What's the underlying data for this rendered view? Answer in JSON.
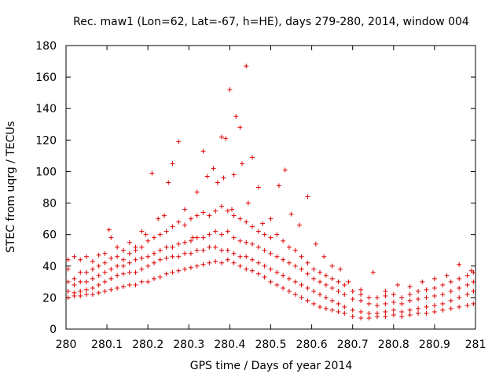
{
  "chart_data": {
    "type": "scatter",
    "title": "Rec. maw1 (Lon=62, Lat=-67, h=HE), days 279-280, 2014, window 004",
    "xlabel": "GPS time / Days of year 2014",
    "ylabel": "STEC from uqrg / TECUs",
    "xlim": [
      280,
      281
    ],
    "ylim": [
      0,
      180
    ],
    "xticks": [
      "280",
      "280.1",
      "280.2",
      "280.3",
      "280.4",
      "280.5",
      "280.6",
      "280.7",
      "280.8",
      "280.9",
      "281"
    ],
    "yticks": [
      "0",
      "20",
      "40",
      "60",
      "80",
      "100",
      "120",
      "140",
      "160",
      "180"
    ],
    "grid": false,
    "marker": "plus",
    "color": "#e00000",
    "series": [
      {
        "points": [
          [
            280.005,
            44
          ],
          [
            280.02,
            46
          ],
          [
            280.035,
            44
          ],
          [
            280.05,
            46
          ],
          [
            280.065,
            43
          ],
          [
            280.08,
            47
          ],
          [
            280.095,
            48
          ],
          [
            280.105,
            63
          ],
          [
            280.11,
            58
          ],
          [
            280.125,
            52
          ],
          [
            280.14,
            50
          ],
          [
            280.155,
            55
          ],
          [
            280.17,
            52
          ],
          [
            280.185,
            62
          ],
          [
            280.195,
            60
          ],
          [
            280.21,
            99
          ],
          [
            280.225,
            70
          ],
          [
            280.24,
            72
          ],
          [
            280.25,
            93
          ],
          [
            280.26,
            105
          ],
          [
            280.275,
            119
          ],
          [
            280.29,
            76
          ],
          [
            280.31,
            58
          ],
          [
            280.32,
            87
          ],
          [
            280.335,
            113
          ],
          [
            280.345,
            97
          ],
          [
            280.36,
            102
          ],
          [
            280.37,
            93
          ],
          [
            280.38,
            122
          ],
          [
            280.385,
            96
          ],
          [
            280.39,
            121
          ],
          [
            280.4,
            152
          ],
          [
            280.405,
            76
          ],
          [
            280.41,
            98
          ],
          [
            280.415,
            135
          ],
          [
            280.425,
            128
          ],
          [
            280.43,
            105
          ],
          [
            280.44,
            167
          ],
          [
            280.445,
            80
          ],
          [
            280.455,
            109
          ],
          [
            280.47,
            90
          ],
          [
            280.48,
            67
          ],
          [
            280.5,
            70
          ],
          [
            280.52,
            91
          ],
          [
            280.535,
            101
          ],
          [
            280.55,
            73
          ],
          [
            280.57,
            66
          ],
          [
            280.59,
            84
          ],
          [
            280.61,
            54
          ],
          [
            280.63,
            46
          ],
          [
            280.65,
            40
          ],
          [
            280.67,
            38
          ],
          [
            280.69,
            30
          ],
          [
            280.72,
            25
          ],
          [
            280.75,
            36
          ],
          [
            280.78,
            24
          ],
          [
            280.81,
            28
          ],
          [
            280.84,
            27
          ],
          [
            280.87,
            30
          ],
          [
            280.9,
            32
          ],
          [
            280.93,
            34
          ],
          [
            280.96,
            41
          ],
          [
            280.99,
            37
          ]
        ]
      },
      {
        "points": [
          [
            280.005,
            38
          ],
          [
            280.02,
            32
          ],
          [
            280.035,
            36
          ],
          [
            280.05,
            36
          ],
          [
            280.065,
            38
          ],
          [
            280.08,
            40
          ],
          [
            280.095,
            42
          ],
          [
            280.11,
            45
          ],
          [
            280.125,
            46
          ],
          [
            280.14,
            44
          ],
          [
            280.155,
            48
          ],
          [
            280.17,
            50
          ],
          [
            280.185,
            52
          ],
          [
            280.2,
            56
          ],
          [
            280.215,
            58
          ],
          [
            280.23,
            60
          ],
          [
            280.245,
            62
          ],
          [
            280.26,
            65
          ],
          [
            280.275,
            68
          ],
          [
            280.29,
            66
          ],
          [
            280.305,
            70
          ],
          [
            280.32,
            72
          ],
          [
            280.335,
            74
          ],
          [
            280.35,
            72
          ],
          [
            280.365,
            75
          ],
          [
            280.38,
            78
          ],
          [
            280.395,
            75
          ],
          [
            280.41,
            72
          ],
          [
            280.425,
            70
          ],
          [
            280.44,
            68
          ],
          [
            280.455,
            65
          ],
          [
            280.47,
            62
          ],
          [
            280.485,
            60
          ],
          [
            280.5,
            58
          ],
          [
            280.515,
            60
          ],
          [
            280.53,
            56
          ],
          [
            280.545,
            52
          ],
          [
            280.56,
            50
          ],
          [
            280.575,
            46
          ],
          [
            280.59,
            42
          ],
          [
            280.605,
            38
          ],
          [
            280.62,
            36
          ],
          [
            280.635,
            34
          ],
          [
            280.65,
            32
          ],
          [
            280.665,
            30
          ],
          [
            280.68,
            28
          ],
          [
            280.7,
            24
          ],
          [
            280.72,
            22
          ],
          [
            280.74,
            20
          ],
          [
            280.76,
            20
          ],
          [
            280.78,
            21
          ],
          [
            280.8,
            22
          ],
          [
            280.82,
            20
          ],
          [
            280.84,
            22
          ],
          [
            280.86,
            24
          ],
          [
            280.88,
            25
          ],
          [
            280.9,
            26
          ],
          [
            280.92,
            28
          ],
          [
            280.94,
            30
          ],
          [
            280.96,
            32
          ],
          [
            280.98,
            34
          ],
          [
            280.995,
            36
          ]
        ]
      },
      {
        "points": [
          [
            280.005,
            30
          ],
          [
            280.02,
            28
          ],
          [
            280.035,
            30
          ],
          [
            280.05,
            30
          ],
          [
            280.065,
            32
          ],
          [
            280.08,
            34
          ],
          [
            280.095,
            36
          ],
          [
            280.11,
            38
          ],
          [
            280.125,
            40
          ],
          [
            280.14,
            40
          ],
          [
            280.155,
            42
          ],
          [
            280.17,
            44
          ],
          [
            280.185,
            45
          ],
          [
            280.2,
            46
          ],
          [
            280.215,
            48
          ],
          [
            280.23,
            50
          ],
          [
            280.245,
            52
          ],
          [
            280.26,
            52
          ],
          [
            280.275,
            54
          ],
          [
            280.29,
            55
          ],
          [
            280.305,
            56
          ],
          [
            280.32,
            58
          ],
          [
            280.335,
            58
          ],
          [
            280.35,
            60
          ],
          [
            280.365,
            62
          ],
          [
            280.38,
            60
          ],
          [
            280.395,
            62
          ],
          [
            280.41,
            58
          ],
          [
            280.425,
            56
          ],
          [
            280.44,
            55
          ],
          [
            280.455,
            54
          ],
          [
            280.47,
            52
          ],
          [
            280.485,
            50
          ],
          [
            280.5,
            48
          ],
          [
            280.515,
            46
          ],
          [
            280.53,
            44
          ],
          [
            280.545,
            42
          ],
          [
            280.56,
            40
          ],
          [
            280.575,
            38
          ],
          [
            280.59,
            35
          ],
          [
            280.605,
            32
          ],
          [
            280.62,
            30
          ],
          [
            280.635,
            28
          ],
          [
            280.65,
            26
          ],
          [
            280.665,
            24
          ],
          [
            280.68,
            22
          ],
          [
            280.7,
            19
          ],
          [
            280.72,
            18
          ],
          [
            280.74,
            16
          ],
          [
            280.76,
            15
          ],
          [
            280.78,
            16
          ],
          [
            280.8,
            17
          ],
          [
            280.82,
            16
          ],
          [
            280.84,
            18
          ],
          [
            280.86,
            19
          ],
          [
            280.88,
            20
          ],
          [
            280.9,
            21
          ],
          [
            280.92,
            22
          ],
          [
            280.94,
            24
          ],
          [
            280.96,
            26
          ],
          [
            280.98,
            28
          ],
          [
            280.995,
            30
          ]
        ]
      },
      {
        "points": [
          [
            280.005,
            24
          ],
          [
            280.02,
            23
          ],
          [
            280.035,
            24
          ],
          [
            280.05,
            25
          ],
          [
            280.065,
            26
          ],
          [
            280.08,
            28
          ],
          [
            280.095,
            30
          ],
          [
            280.11,
            32
          ],
          [
            280.125,
            34
          ],
          [
            280.14,
            35
          ],
          [
            280.155,
            36
          ],
          [
            280.17,
            36
          ],
          [
            280.185,
            38
          ],
          [
            280.2,
            40
          ],
          [
            280.215,
            42
          ],
          [
            280.23,
            44
          ],
          [
            280.245,
            45
          ],
          [
            280.26,
            46
          ],
          [
            280.275,
            46
          ],
          [
            280.29,
            48
          ],
          [
            280.305,
            48
          ],
          [
            280.32,
            50
          ],
          [
            280.335,
            50
          ],
          [
            280.35,
            52
          ],
          [
            280.365,
            52
          ],
          [
            280.38,
            50
          ],
          [
            280.395,
            50
          ],
          [
            280.41,
            48
          ],
          [
            280.425,
            46
          ],
          [
            280.44,
            46
          ],
          [
            280.455,
            44
          ],
          [
            280.47,
            42
          ],
          [
            280.485,
            40
          ],
          [
            280.5,
            38
          ],
          [
            280.515,
            36
          ],
          [
            280.53,
            34
          ],
          [
            280.545,
            32
          ],
          [
            280.56,
            30
          ],
          [
            280.575,
            28
          ],
          [
            280.59,
            26
          ],
          [
            280.605,
            24
          ],
          [
            280.62,
            22
          ],
          [
            280.635,
            20
          ],
          [
            280.65,
            18
          ],
          [
            280.665,
            16
          ],
          [
            280.68,
            14
          ],
          [
            280.7,
            12
          ],
          [
            280.72,
            11
          ],
          [
            280.74,
            10
          ],
          [
            280.76,
            10
          ],
          [
            280.78,
            11
          ],
          [
            280.8,
            12
          ],
          [
            280.82,
            11
          ],
          [
            280.84,
            12
          ],
          [
            280.86,
            13
          ],
          [
            280.88,
            14
          ],
          [
            280.9,
            15
          ],
          [
            280.92,
            16
          ],
          [
            280.94,
            18
          ],
          [
            280.96,
            20
          ],
          [
            280.98,
            22
          ],
          [
            280.995,
            24
          ]
        ]
      },
      {
        "points": [
          [
            280.005,
            20
          ],
          [
            280.02,
            21
          ],
          [
            280.035,
            21
          ],
          [
            280.05,
            22
          ],
          [
            280.065,
            22
          ],
          [
            280.08,
            23
          ],
          [
            280.095,
            24
          ],
          [
            280.11,
            25
          ],
          [
            280.125,
            26
          ],
          [
            280.14,
            27
          ],
          [
            280.155,
            28
          ],
          [
            280.17,
            28
          ],
          [
            280.185,
            30
          ],
          [
            280.2,
            30
          ],
          [
            280.215,
            32
          ],
          [
            280.23,
            33
          ],
          [
            280.245,
            35
          ],
          [
            280.26,
            36
          ],
          [
            280.275,
            37
          ],
          [
            280.29,
            38
          ],
          [
            280.305,
            39
          ],
          [
            280.32,
            40
          ],
          [
            280.335,
            41
          ],
          [
            280.35,
            42
          ],
          [
            280.365,
            43
          ],
          [
            280.38,
            42
          ],
          [
            280.395,
            44
          ],
          [
            280.41,
            42
          ],
          [
            280.425,
            40
          ],
          [
            280.44,
            38
          ],
          [
            280.455,
            37
          ],
          [
            280.47,
            35
          ],
          [
            280.485,
            33
          ],
          [
            280.5,
            30
          ],
          [
            280.515,
            28
          ],
          [
            280.53,
            26
          ],
          [
            280.545,
            24
          ],
          [
            280.56,
            22
          ],
          [
            280.575,
            20
          ],
          [
            280.59,
            18
          ],
          [
            280.605,
            16
          ],
          [
            280.62,
            14
          ],
          [
            280.635,
            13
          ],
          [
            280.65,
            12
          ],
          [
            280.665,
            11
          ],
          [
            280.68,
            10
          ],
          [
            280.7,
            8
          ],
          [
            280.72,
            7
          ],
          [
            280.74,
            7
          ],
          [
            280.76,
            8
          ],
          [
            280.78,
            8
          ],
          [
            280.8,
            9
          ],
          [
            280.82,
            8
          ],
          [
            280.84,
            9
          ],
          [
            280.86,
            10
          ],
          [
            280.88,
            10
          ],
          [
            280.9,
            11
          ],
          [
            280.92,
            12
          ],
          [
            280.94,
            13
          ],
          [
            280.96,
            14
          ],
          [
            280.98,
            15
          ],
          [
            280.995,
            16
          ]
        ]
      }
    ]
  }
}
